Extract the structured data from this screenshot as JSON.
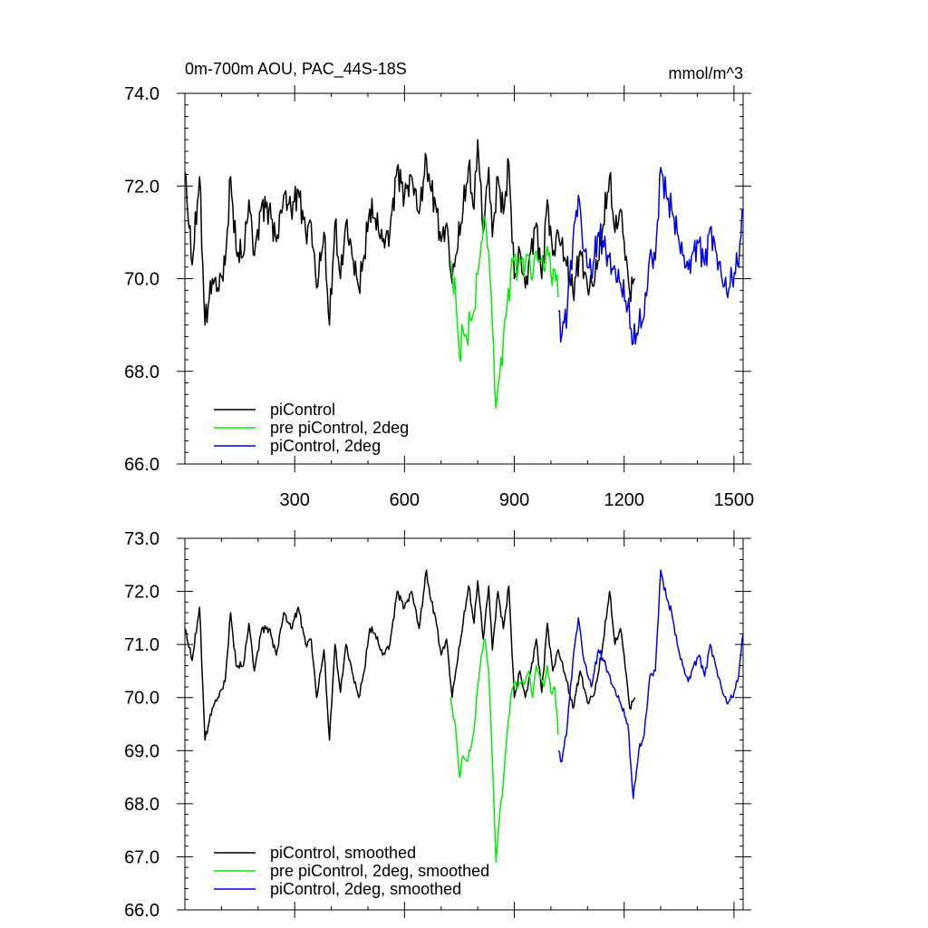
{
  "title_left": "0m-700m AOU, PAC_44S-18S",
  "title_right": "mmol/m^3",
  "colors": {
    "piControl": "#000000",
    "pre_piControl_2deg": "#00ee00",
    "piControl_2deg": "#0000ee"
  },
  "chart_data": [
    {
      "type": "line",
      "xlim": [
        0,
        1525
      ],
      "ylim": [
        66,
        74
      ],
      "x_ticks": [
        300,
        600,
        900,
        1200,
        1500
      ],
      "x_tick_labels": [
        "300",
        "600",
        "900",
        "1200",
        "1500"
      ],
      "y_ticks": [
        66,
        68,
        70,
        72,
        74
      ],
      "y_tick_labels": [
        "66.0",
        "68.0",
        "70.0",
        "72.0",
        "74.0"
      ],
      "legend_position": "bottom-left",
      "series": [
        {
          "name": "piControl",
          "color": "#000000",
          "x": [
            0,
            20,
            40,
            55,
            75,
            90,
            110,
            125,
            140,
            160,
            175,
            190,
            210,
            230,
            250,
            270,
            290,
            310,
            330,
            345,
            360,
            380,
            395,
            410,
            425,
            440,
            460,
            475,
            490,
            505,
            520,
            540,
            560,
            580,
            600,
            620,
            640,
            660,
            670,
            685,
            700,
            715,
            730,
            740,
            760,
            775,
            790,
            800,
            815,
            830,
            840,
            855,
            870,
            885,
            900,
            915,
            930,
            945,
            960,
            975,
            990,
            1005,
            1020,
            1040,
            1060,
            1080,
            1100,
            1120,
            1140,
            1160,
            1175,
            1190,
            1200,
            1215,
            1230
          ],
          "y": [
            72.3,
            70.3,
            72.2,
            69.0,
            70.0,
            69.8,
            70.3,
            72.2,
            70.6,
            70.5,
            71.7,
            70.5,
            71.6,
            71.5,
            70.8,
            71.8,
            71.5,
            71.9,
            71.0,
            71.2,
            69.8,
            71.0,
            69.0,
            71.2,
            70.0,
            71.2,
            70.4,
            69.8,
            70.5,
            71.5,
            71.3,
            70.8,
            71.0,
            72.4,
            71.8,
            72.2,
            71.4,
            72.6,
            72.0,
            71.6,
            70.8,
            71.2,
            69.9,
            70.5,
            71.5,
            72.4,
            71.5,
            73.0,
            71.0,
            72.4,
            70.9,
            72.2,
            71.4,
            72.5,
            70.0,
            70.6,
            69.8,
            70.6,
            71.2,
            70.0,
            71.7,
            70.5,
            71.0,
            70.4,
            69.7,
            70.6,
            69.8,
            70.0,
            71.0,
            72.2,
            71.0,
            71.5,
            70.8,
            69.7,
            70.0
          ]
        },
        {
          "name": "pre piControl, 2deg",
          "color": "#00ee00",
          "x": [
            725,
            740,
            750,
            760,
            770,
            780,
            790,
            800,
            810,
            820,
            830,
            840,
            850,
            860,
            870,
            880,
            890,
            900,
            910,
            920,
            930,
            940,
            950,
            960,
            970,
            980,
            990,
            1000,
            1010,
            1020
          ],
          "y": [
            70.4,
            69.6,
            68.3,
            68.9,
            68.7,
            69.1,
            69.3,
            70.1,
            70.8,
            71.3,
            70.6,
            69.0,
            67.2,
            67.9,
            68.7,
            69.4,
            70.1,
            70.5,
            70.2,
            70.4,
            70.3,
            70.5,
            70.0,
            70.6,
            70.4,
            70.2,
            70.7,
            70.1,
            70.2,
            69.6
          ]
        },
        {
          "name": "piControl, 2deg",
          "color": "#0000ee",
          "x": [
            1020,
            1030,
            1045,
            1060,
            1075,
            1090,
            1110,
            1130,
            1150,
            1170,
            1190,
            1210,
            1225,
            1240,
            1255,
            1270,
            1285,
            1300,
            1315,
            1330,
            1345,
            1360,
            1375,
            1390,
            1405,
            1420,
            1435,
            1450,
            1465,
            1480,
            1495,
            1510,
            1525
          ],
          "y": [
            69.3,
            68.8,
            69.4,
            70.8,
            71.8,
            70.6,
            70.1,
            71.0,
            70.6,
            70.2,
            69.9,
            69.4,
            68.6,
            69.0,
            69.2,
            70.5,
            70.4,
            72.4,
            71.8,
            71.5,
            71.0,
            70.5,
            70.2,
            70.6,
            70.8,
            70.3,
            71.1,
            70.6,
            70.1,
            69.7,
            70.0,
            70.3,
            71.4
          ]
        }
      ]
    },
    {
      "type": "line",
      "xlim": [
        0,
        1525
      ],
      "ylim": [
        66,
        73
      ],
      "y_ticks": [
        66,
        67,
        68,
        69,
        70,
        71,
        72,
        73
      ],
      "y_tick_labels": [
        "66.0",
        "67.0",
        "68.0",
        "69.0",
        "70.0",
        "71.0",
        "72.0",
        "73.0"
      ],
      "legend_position": "bottom-left",
      "series": [
        {
          "name": "piControl, smoothed",
          "color": "#000000",
          "x": [
            0,
            20,
            40,
            55,
            75,
            90,
            110,
            125,
            140,
            160,
            175,
            190,
            210,
            230,
            250,
            270,
            290,
            310,
            330,
            345,
            360,
            380,
            395,
            410,
            425,
            440,
            460,
            475,
            490,
            505,
            520,
            540,
            560,
            580,
            600,
            620,
            640,
            660,
            670,
            685,
            700,
            715,
            730,
            740,
            760,
            775,
            790,
            800,
            815,
            830,
            840,
            855,
            870,
            885,
            900,
            915,
            930,
            945,
            960,
            975,
            990,
            1005,
            1020,
            1040,
            1060,
            1080,
            1100,
            1120,
            1140,
            1160,
            1175,
            1190,
            1200,
            1215,
            1230
          ],
          "y": [
            71.3,
            70.7,
            71.7,
            69.2,
            69.8,
            70.0,
            70.3,
            71.6,
            70.6,
            70.6,
            71.4,
            70.5,
            71.3,
            71.3,
            70.8,
            71.6,
            71.3,
            71.7,
            71.0,
            71.1,
            70.0,
            70.9,
            69.2,
            71.0,
            70.1,
            71.0,
            70.4,
            70.0,
            70.5,
            71.3,
            71.2,
            70.8,
            71.0,
            72.0,
            71.7,
            72.0,
            71.3,
            72.4,
            71.9,
            71.5,
            70.8,
            71.1,
            70.0,
            70.5,
            71.4,
            72.1,
            71.4,
            72.2,
            71.1,
            72.1,
            70.9,
            72.0,
            71.3,
            72.1,
            70.0,
            70.5,
            70.0,
            70.5,
            71.1,
            70.1,
            71.4,
            70.5,
            70.9,
            70.4,
            69.8,
            70.5,
            69.9,
            70.1,
            70.9,
            72.0,
            71.0,
            71.3,
            70.8,
            69.8,
            70.0
          ]
        },
        {
          "name": "pre piControl, 2deg, smoothed",
          "color": "#00ee00",
          "x": [
            725,
            740,
            750,
            760,
            770,
            780,
            790,
            800,
            810,
            820,
            830,
            840,
            850,
            860,
            870,
            880,
            890,
            900,
            910,
            920,
            930,
            940,
            950,
            960,
            970,
            980,
            990,
            1000,
            1010,
            1020
          ],
          "y": [
            70.0,
            69.4,
            68.5,
            68.9,
            68.8,
            69.0,
            69.4,
            70.2,
            70.8,
            71.1,
            70.5,
            68.8,
            66.9,
            67.8,
            68.4,
            69.3,
            70.0,
            70.3,
            70.2,
            70.3,
            70.3,
            70.5,
            70.0,
            70.6,
            70.4,
            70.2,
            70.6,
            70.1,
            70.2,
            69.3
          ]
        },
        {
          "name": "piControl, 2deg, smoothed",
          "color": "#0000ee",
          "x": [
            1020,
            1030,
            1045,
            1060,
            1075,
            1090,
            1110,
            1130,
            1150,
            1170,
            1190,
            1210,
            1225,
            1240,
            1255,
            1270,
            1285,
            1300,
            1315,
            1330,
            1345,
            1360,
            1375,
            1390,
            1405,
            1420,
            1435,
            1450,
            1465,
            1480,
            1495,
            1510,
            1525
          ],
          "y": [
            69.0,
            68.8,
            69.5,
            70.7,
            71.5,
            70.7,
            70.2,
            70.9,
            70.6,
            70.2,
            69.9,
            69.5,
            68.1,
            69.0,
            69.3,
            70.4,
            70.5,
            72.4,
            71.9,
            71.6,
            71.0,
            70.6,
            70.3,
            70.6,
            70.8,
            70.4,
            71.0,
            70.6,
            70.2,
            69.9,
            70.0,
            70.3,
            71.2
          ]
        }
      ]
    }
  ]
}
